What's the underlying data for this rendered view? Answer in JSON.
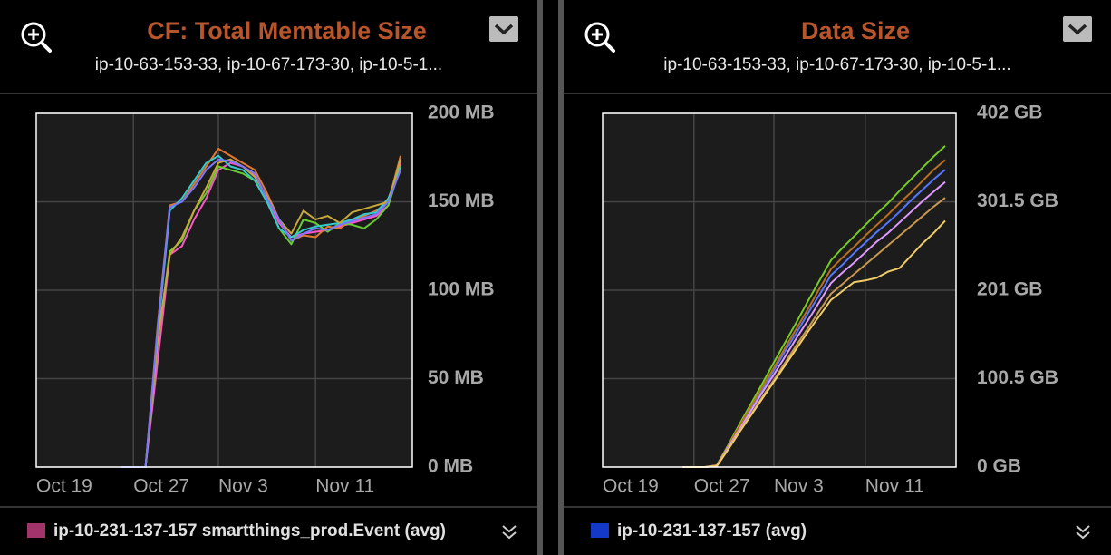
{
  "chart_data": [
    {
      "type": "line",
      "title": "CF: Total Memtable Size",
      "subtitle": "ip-10-63-153-33, ip-10-67-173-30, ip-10-5-1...",
      "categories": [
        "Oct 19",
        null,
        null,
        null,
        null,
        null,
        null,
        null,
        "Oct 27",
        null,
        null,
        null,
        null,
        null,
        null,
        "Nov 3",
        null,
        null,
        null,
        null,
        null,
        null,
        null,
        "Nov 11",
        null,
        null,
        null,
        null,
        null,
        null,
        null
      ],
      "series": [
        {
          "name": "ip-10-231-137-157 smartthings_prod.Event (avg)",
          "color": "#ff55c8",
          "values": [
            null,
            null,
            null,
            null,
            null,
            null,
            null,
            0,
            0,
            0,
            60,
            120,
            125,
            140,
            152,
            168,
            172,
            170,
            165,
            152,
            138,
            130,
            132,
            133,
            134,
            136,
            138,
            140,
            142,
            148,
            172
          ]
        },
        {
          "color": "#e07830",
          "values": [
            null,
            null,
            null,
            null,
            null,
            null,
            null,
            0,
            0,
            0,
            80,
            148,
            150,
            160,
            170,
            180,
            176,
            172,
            168,
            155,
            140,
            128,
            131,
            130,
            136,
            135,
            140,
            142,
            145,
            150,
            176
          ]
        },
        {
          "color": "#66cc33",
          "values": [
            null,
            null,
            null,
            null,
            null,
            null,
            null,
            0,
            0,
            0,
            70,
            122,
            128,
            145,
            155,
            170,
            168,
            166,
            162,
            150,
            135,
            126,
            140,
            138,
            133,
            138,
            137,
            135,
            140,
            148,
            170
          ]
        },
        {
          "color": "#33cccc",
          "values": [
            null,
            null,
            null,
            null,
            null,
            null,
            null,
            0,
            0,
            0,
            75,
            145,
            152,
            162,
            172,
            176,
            170,
            168,
            162,
            150,
            135,
            130,
            134,
            136,
            137,
            138,
            140,
            143,
            144,
            152,
            170
          ]
        },
        {
          "color": "#c8a838",
          "values": [
            null,
            null,
            null,
            null,
            null,
            null,
            null,
            0,
            0,
            0,
            72,
            120,
            130,
            145,
            158,
            172,
            174,
            170,
            164,
            153,
            140,
            132,
            145,
            140,
            142,
            138,
            144,
            146,
            148,
            150,
            174
          ]
        },
        {
          "color": "#7777ff",
          "values": [
            null,
            null,
            null,
            null,
            null,
            null,
            null,
            0,
            0,
            0,
            78,
            147,
            150,
            158,
            168,
            174,
            173,
            170,
            166,
            152,
            140,
            128,
            132,
            135,
            134,
            137,
            139,
            141,
            143,
            150,
            168
          ]
        }
      ],
      "legend_color": "#a3336b",
      "ylim": [
        0,
        200
      ],
      "yticks": [
        {
          "value": 0,
          "label": "0 MB"
        },
        {
          "value": 50,
          "label": "50 MB"
        },
        {
          "value": 100,
          "label": "100 MB"
        },
        {
          "value": 150,
          "label": "150 MB"
        },
        {
          "value": 200,
          "label": "200 MB"
        }
      ]
    },
    {
      "type": "line",
      "title": "Data Size",
      "subtitle": "ip-10-63-153-33, ip-10-67-173-30, ip-10-5-1...",
      "categories": [
        "Oct 19",
        null,
        null,
        null,
        null,
        null,
        null,
        null,
        "Oct 27",
        null,
        null,
        null,
        null,
        null,
        null,
        "Nov 3",
        null,
        null,
        null,
        null,
        null,
        null,
        null,
        "Nov 11",
        null,
        null,
        null,
        null,
        null,
        null,
        null
      ],
      "series": [
        {
          "name": "ip-10-231-137-157 (avg)",
          "color": "#5577ff",
          "values": [
            null,
            null,
            null,
            null,
            null,
            null,
            null,
            0,
            0,
            0,
            2,
            24,
            45,
            67,
            88,
            110,
            132,
            153,
            175,
            196,
            218,
            230,
            243,
            255,
            267,
            278,
            290,
            303,
            315,
            327,
            338
          ]
        },
        {
          "color": "#77cc22",
          "values": [
            null,
            null,
            null,
            null,
            null,
            null,
            null,
            0,
            0,
            0,
            2,
            25,
            49,
            72,
            95,
            119,
            142,
            165,
            189,
            212,
            235,
            249,
            262,
            275,
            288,
            300,
            314,
            327,
            340,
            353,
            365
          ]
        },
        {
          "color": "#b87020",
          "values": [
            null,
            null,
            null,
            null,
            null,
            null,
            null,
            0,
            0,
            0,
            2,
            24,
            47,
            69,
            91,
            113,
            136,
            158,
            180,
            203,
            225,
            238,
            250,
            263,
            275,
            287,
            300,
            312,
            325,
            338,
            349
          ]
        },
        {
          "color": "#dd99ff",
          "values": [
            null,
            null,
            null,
            null,
            null,
            null,
            null,
            0,
            0,
            0,
            2,
            23,
            43,
            64,
            85,
            105,
            126,
            147,
            167,
            188,
            209,
            221,
            232,
            244,
            256,
            266,
            278,
            290,
            302,
            313,
            324
          ]
        },
        {
          "color": "#c89850",
          "values": [
            null,
            null,
            null,
            null,
            null,
            null,
            null,
            0,
            0,
            0,
            2,
            21,
            41,
            60,
            80,
            99,
            119,
            139,
            158,
            178,
            197,
            208,
            219,
            230,
            241,
            252,
            263,
            274,
            285,
            296,
            306
          ]
        },
        {
          "color": "#f0cc66",
          "values": [
            null,
            null,
            null,
            null,
            null,
            null,
            null,
            0,
            0,
            0,
            1,
            20,
            40,
            59,
            78,
            97,
            116,
            135,
            154,
            172,
            190,
            200,
            210,
            212,
            215,
            222,
            226,
            240,
            254,
            266,
            280
          ]
        }
      ],
      "legend_color": "#1438c8",
      "ylim": [
        0,
        402
      ],
      "yticks": [
        {
          "value": 0,
          "label": "0 GB"
        },
        {
          "value": 100.5,
          "label": "100.5 GB"
        },
        {
          "value": 201,
          "label": "201 GB"
        },
        {
          "value": 301.5,
          "label": "301.5 GB"
        },
        {
          "value": 402,
          "label": "402 GB"
        }
      ]
    }
  ]
}
